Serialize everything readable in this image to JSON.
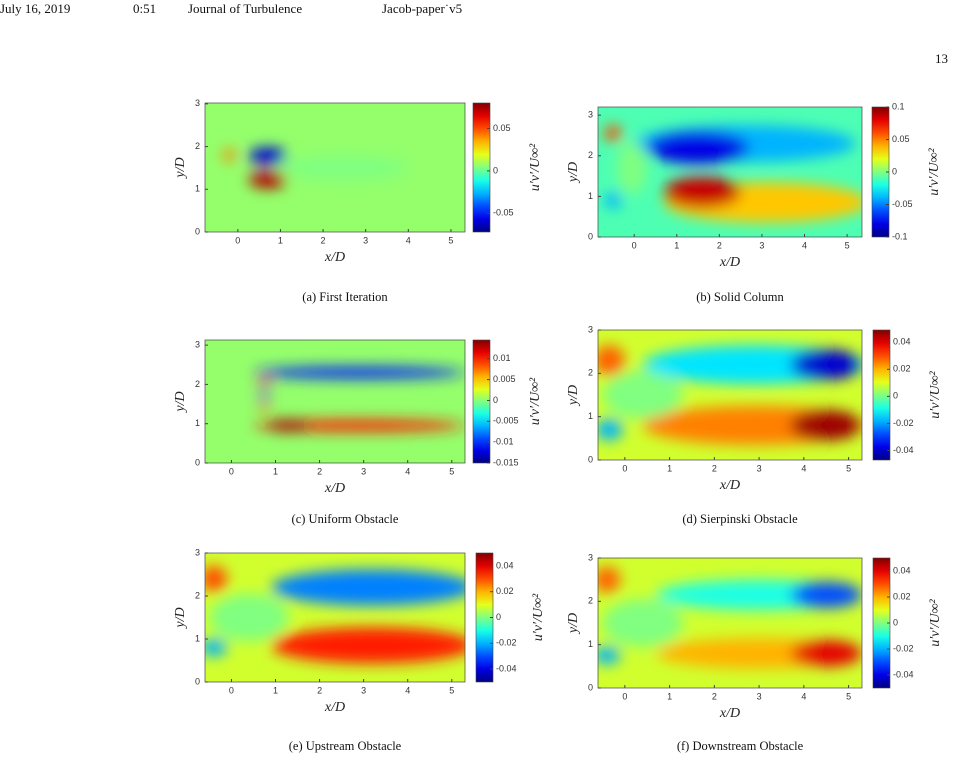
{
  "header": {
    "date": "July 16, 2019",
    "time": "0:51",
    "journal": "Journal of Turbulence",
    "file": "Jacob-paper˙v5"
  },
  "page_number": "13",
  "figures": [
    {
      "caption": "(a)  First Iteration",
      "xlabel": "x/D",
      "ylabel": "y/D",
      "colorbar_label": "u′v′/U∞²",
      "xlim": [
        -0.77,
        5.33
      ],
      "ylim": [
        0,
        3.02
      ],
      "xticks": [
        0,
        1,
        2,
        3,
        4,
        5
      ],
      "yticks": [
        0,
        1,
        2,
        3
      ],
      "clim": [
        -0.072,
        0.08
      ],
      "cticks": [
        0.05,
        0,
        -0.05
      ]
    },
    {
      "caption": "(b)  Solid Column",
      "xlabel": "x/D",
      "ylabel": "y/D",
      "colorbar_label": "u′v′/U∞²",
      "xlim": [
        -0.85,
        5.35
      ],
      "ylim": [
        0,
        3.2
      ],
      "xticks": [
        0,
        1,
        2,
        3,
        4,
        5
      ],
      "yticks": [
        0,
        1,
        2,
        3
      ],
      "clim": [
        -0.1,
        0.1
      ],
      "cticks": [
        0.1,
        0.05,
        0,
        -0.05,
        -0.1
      ]
    },
    {
      "caption": "(c)  Uniform Obstacle",
      "xlabel": "x/D",
      "ylabel": "y/D",
      "colorbar_label": "u′v′/U∞²",
      "xlim": [
        -0.6,
        5.3
      ],
      "ylim": [
        0,
        3.13
      ],
      "xticks": [
        0,
        1,
        2,
        3,
        4,
        5
      ],
      "yticks": [
        0,
        1,
        2,
        3
      ],
      "clim": [
        -0.015,
        0.0145
      ],
      "cticks": [
        0.01,
        0.005,
        0,
        -0.005,
        -0.01,
        -0.015
      ]
    },
    {
      "caption": "(d)  Sierpinski Obstacle",
      "xlabel": "x/D",
      "ylabel": "y/D",
      "colorbar_label": "u′v′/U∞²",
      "xlim": [
        -0.6,
        5.3
      ],
      "ylim": [
        0,
        3
      ],
      "xticks": [
        0,
        1,
        2,
        3,
        4,
        5
      ],
      "yticks": [
        0,
        1,
        2,
        3
      ],
      "clim": [
        -0.047,
        0.049
      ],
      "cticks": [
        0.04,
        0.02,
        0,
        -0.02,
        -0.04
      ]
    },
    {
      "caption": "(e)  Upstream Obstacle",
      "xlabel": "x/D",
      "ylabel": "y/D",
      "colorbar_label": "u′v′/U∞²",
      "xlim": [
        -0.6,
        5.3
      ],
      "ylim": [
        0,
        3
      ],
      "xticks": [
        0,
        1,
        2,
        3,
        4,
        5
      ],
      "yticks": [
        0,
        1,
        2,
        3
      ],
      "clim": [
        -0.05,
        0.05
      ],
      "cticks": [
        0.04,
        0.02,
        0,
        -0.02,
        -0.04
      ]
    },
    {
      "caption": "(f)  Downstream Obstacle",
      "xlabel": "x/D",
      "ylabel": "y/D",
      "colorbar_label": "u′v′/U∞²",
      "xlim": [
        -0.6,
        5.3
      ],
      "ylim": [
        0,
        3
      ],
      "xticks": [
        0,
        1,
        2,
        3,
        4,
        5
      ],
      "yticks": [
        0,
        1,
        2,
        3
      ],
      "clim": [
        -0.05,
        0.05
      ],
      "cticks": [
        0.04,
        0.02,
        0,
        -0.02,
        -0.04
      ]
    }
  ]
}
